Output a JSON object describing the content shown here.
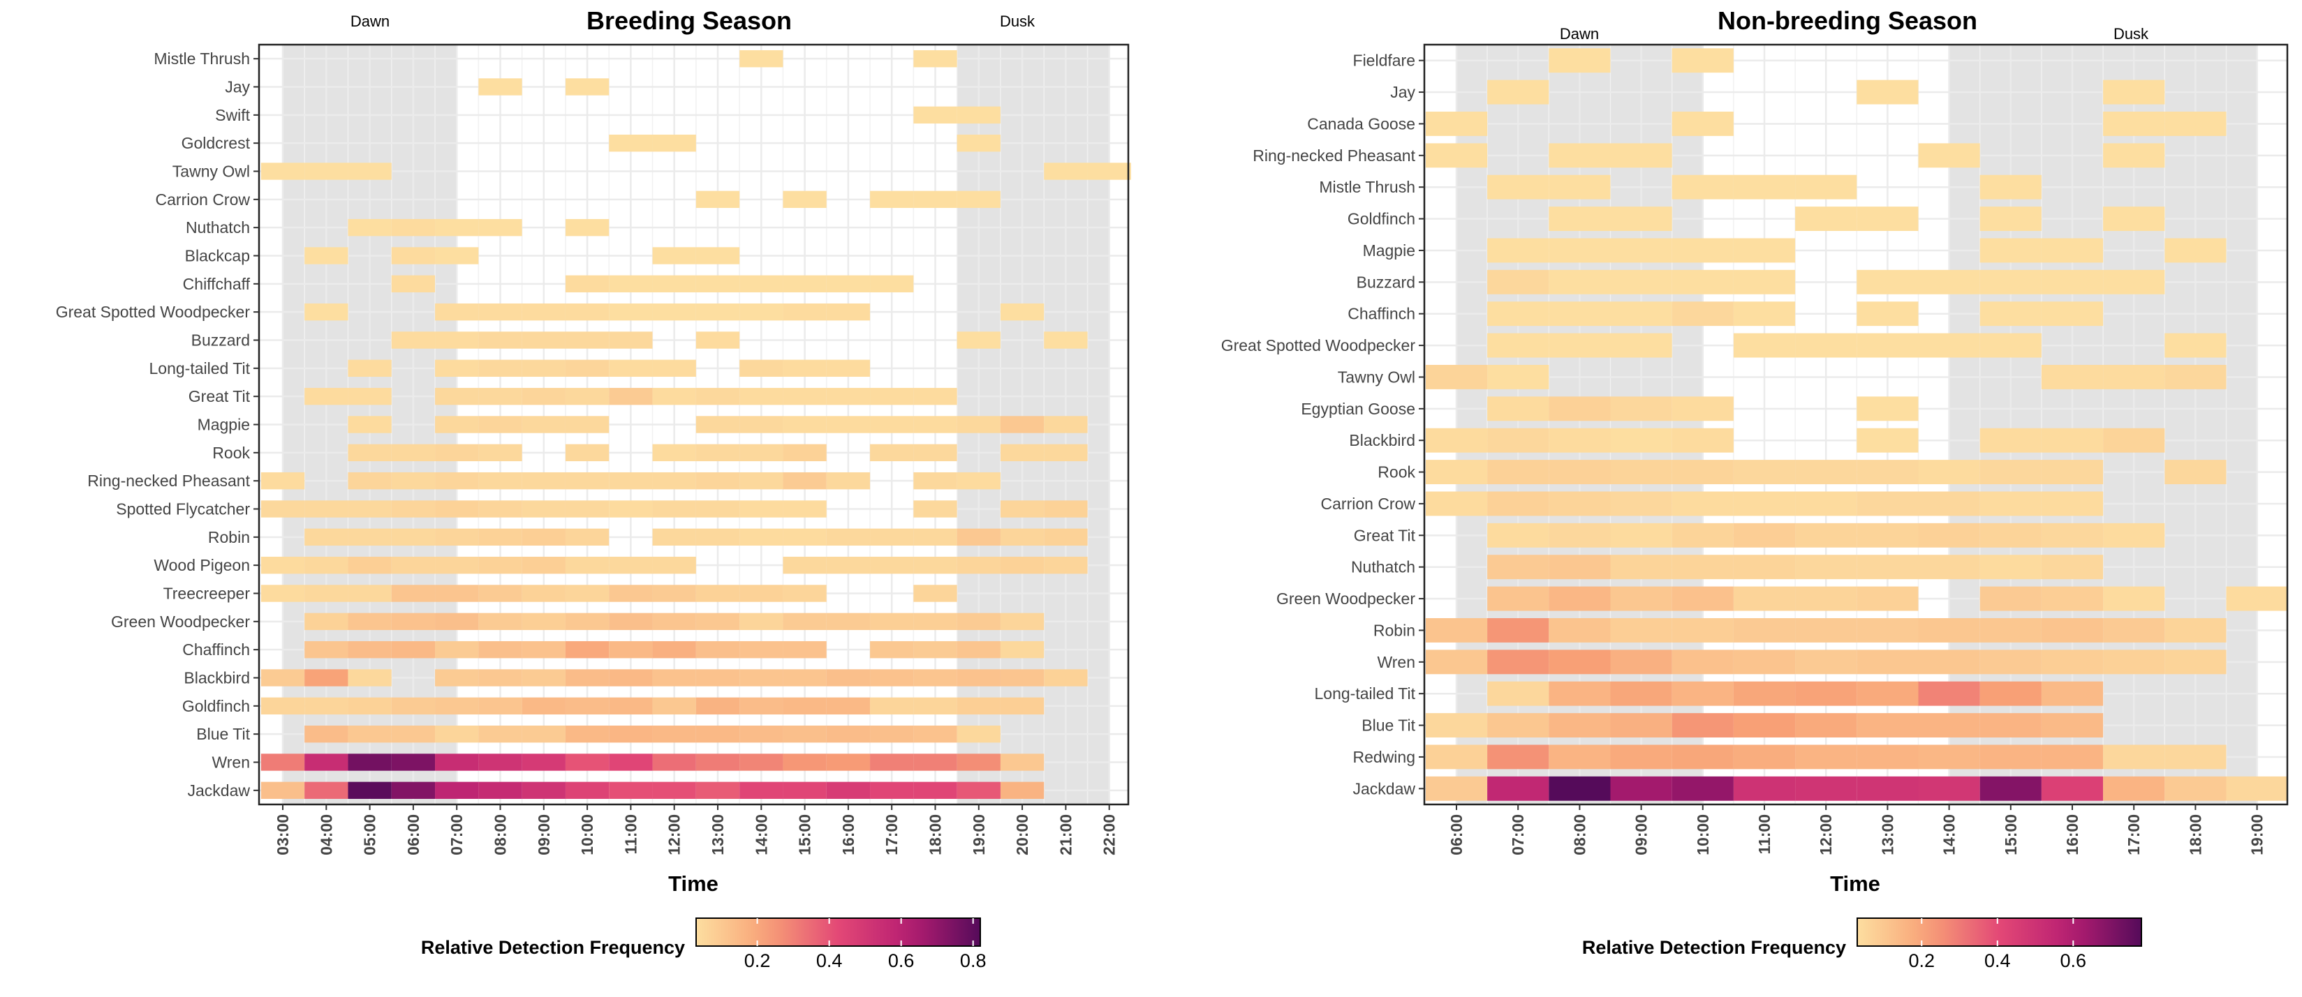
{
  "chart_data": [
    {
      "type": "heatmap",
      "title": "Breeding Season",
      "xlabel": "Time",
      "ylabel": "",
      "dawn_label": "Dawn",
      "dusk_label": "Dusk",
      "shaded_dawn": [
        "03:00",
        "07:00"
      ],
      "shaded_dusk": [
        "18:30",
        "22:00"
      ],
      "x": [
        "03:00",
        "04:00",
        "05:00",
        "06:00",
        "07:00",
        "08:00",
        "09:00",
        "10:00",
        "11:00",
        "12:00",
        "13:00",
        "14:00",
        "15:00",
        "16:00",
        "17:00",
        "18:00",
        "19:00",
        "20:00",
        "21:00",
        "22:00"
      ],
      "y": [
        "Mistle Thrush",
        "Jay",
        "Swift",
        "Goldcrest",
        "Tawny Owl",
        "Carrion Crow",
        "Nuthatch",
        "Blackcap",
        "Chiffchaff",
        "Great Spotted Woodpecker",
        "Buzzard",
        "Long-tailed Tit",
        "Great Tit",
        "Magpie",
        "Rook",
        "Ring-necked Pheasant",
        "Spotted Flycatcher",
        "Robin",
        "Wood Pigeon",
        "Treecreeper",
        "Green Woodpecker",
        "Chaffinch",
        "Blackbird",
        "Goldfinch",
        "Blue Tit",
        "Wren",
        "Jackdaw"
      ],
      "values": [
        [
          null,
          null,
          null,
          null,
          null,
          null,
          null,
          null,
          null,
          null,
          null,
          0.03,
          null,
          null,
          null,
          0.03,
          null,
          null,
          null,
          null
        ],
        [
          null,
          null,
          null,
          null,
          null,
          0.03,
          null,
          0.03,
          null,
          null,
          null,
          null,
          null,
          null,
          null,
          null,
          null,
          null,
          null,
          null
        ],
        [
          null,
          null,
          null,
          null,
          null,
          null,
          null,
          null,
          null,
          null,
          null,
          null,
          null,
          null,
          null,
          0.03,
          0.03,
          null,
          null,
          null
        ],
        [
          null,
          null,
          null,
          null,
          null,
          null,
          null,
          null,
          0.03,
          0.03,
          null,
          null,
          null,
          null,
          null,
          null,
          0.03,
          null,
          null,
          null
        ],
        [
          0.03,
          0.03,
          0.03,
          null,
          null,
          null,
          null,
          null,
          null,
          null,
          null,
          null,
          null,
          null,
          null,
          null,
          null,
          null,
          0.03,
          0.03
        ],
        [
          null,
          null,
          null,
          null,
          null,
          null,
          null,
          null,
          null,
          null,
          0.03,
          null,
          0.03,
          null,
          0.03,
          0.03,
          0.03,
          null,
          null,
          null
        ],
        [
          null,
          null,
          0.03,
          0.04,
          0.03,
          0.03,
          null,
          0.03,
          null,
          null,
          null,
          null,
          null,
          null,
          null,
          null,
          null,
          null,
          null,
          null
        ],
        [
          null,
          0.03,
          null,
          0.04,
          0.03,
          null,
          null,
          null,
          null,
          0.03,
          0.03,
          null,
          null,
          null,
          null,
          null,
          null,
          null,
          null,
          null
        ],
        [
          null,
          null,
          null,
          0.04,
          null,
          null,
          null,
          0.04,
          0.03,
          0.03,
          0.03,
          0.03,
          0.03,
          0.03,
          0.03,
          null,
          null,
          null,
          null,
          null
        ],
        [
          null,
          0.03,
          null,
          null,
          0.04,
          0.04,
          0.04,
          0.04,
          0.03,
          0.03,
          0.03,
          0.03,
          0.04,
          0.04,
          null,
          null,
          null,
          0.03,
          null,
          null
        ],
        [
          null,
          null,
          null,
          0.04,
          0.04,
          0.05,
          0.05,
          0.05,
          0.05,
          null,
          0.04,
          null,
          null,
          null,
          null,
          null,
          0.03,
          null,
          0.03,
          null
        ],
        [
          null,
          null,
          0.04,
          null,
          0.04,
          0.05,
          0.05,
          0.06,
          0.04,
          0.04,
          null,
          0.05,
          0.04,
          0.04,
          null,
          null,
          null,
          null,
          null,
          null
        ],
        [
          null,
          0.04,
          0.04,
          null,
          0.05,
          0.05,
          0.06,
          0.05,
          0.09,
          0.04,
          0.05,
          0.04,
          0.04,
          0.04,
          0.04,
          0.04,
          null,
          null,
          null,
          null
        ],
        [
          null,
          null,
          0.04,
          null,
          0.05,
          0.06,
          0.05,
          0.05,
          null,
          null,
          0.05,
          0.05,
          0.04,
          0.04,
          0.04,
          0.04,
          0.05,
          0.1,
          0.05,
          null
        ],
        [
          null,
          null,
          0.05,
          0.05,
          0.06,
          0.05,
          null,
          0.05,
          null,
          0.04,
          0.05,
          0.05,
          0.07,
          null,
          0.05,
          0.05,
          null,
          0.05,
          0.05,
          null
        ],
        [
          0.04,
          null,
          0.06,
          0.05,
          0.06,
          0.05,
          0.05,
          0.05,
          0.05,
          0.05,
          0.06,
          0.05,
          0.09,
          0.05,
          null,
          0.05,
          0.04,
          null,
          null,
          null
        ],
        [
          0.05,
          0.05,
          0.05,
          0.06,
          0.07,
          0.06,
          0.05,
          0.05,
          0.04,
          0.05,
          0.05,
          0.04,
          0.04,
          null,
          null,
          0.05,
          null,
          0.06,
          0.07,
          null
        ],
        [
          null,
          0.05,
          0.05,
          0.05,
          0.06,
          0.07,
          0.08,
          0.06,
          null,
          0.05,
          0.05,
          0.04,
          0.04,
          0.05,
          0.05,
          0.05,
          0.1,
          0.06,
          0.07,
          null
        ],
        [
          0.04,
          0.05,
          0.08,
          0.06,
          0.06,
          0.07,
          0.08,
          0.05,
          0.05,
          0.05,
          null,
          null,
          0.05,
          0.05,
          0.05,
          0.05,
          0.06,
          0.07,
          0.06,
          null
        ],
        [
          0.04,
          0.05,
          0.05,
          0.11,
          0.11,
          0.09,
          0.07,
          0.06,
          0.1,
          0.09,
          0.07,
          0.07,
          0.06,
          null,
          null,
          0.06,
          null,
          null,
          null,
          null
        ],
        [
          null,
          0.07,
          0.11,
          0.12,
          0.13,
          0.09,
          0.08,
          0.1,
          0.13,
          0.11,
          0.1,
          0.06,
          0.09,
          0.09,
          0.08,
          0.08,
          0.09,
          0.06,
          null,
          null
        ],
        [
          null,
          0.11,
          0.14,
          0.15,
          0.09,
          0.13,
          0.12,
          0.2,
          0.15,
          0.18,
          0.13,
          0.12,
          0.12,
          null,
          0.1,
          0.09,
          0.11,
          0.05,
          null,
          null
        ],
        [
          0.09,
          0.22,
          0.05,
          null,
          0.09,
          0.1,
          0.09,
          0.14,
          0.15,
          0.12,
          0.12,
          0.11,
          0.11,
          0.13,
          0.12,
          0.11,
          0.12,
          0.11,
          0.07,
          null
        ],
        [
          0.06,
          0.06,
          0.07,
          0.09,
          0.1,
          0.11,
          0.15,
          0.14,
          0.15,
          0.1,
          0.17,
          0.14,
          0.15,
          0.15,
          0.06,
          0.06,
          0.08,
          0.08,
          null,
          null
        ],
        [
          null,
          0.14,
          0.1,
          0.1,
          0.06,
          0.09,
          0.09,
          0.15,
          0.16,
          0.15,
          0.15,
          0.14,
          0.13,
          0.14,
          0.13,
          0.12,
          0.05,
          null,
          null,
          null
        ],
        [
          0.31,
          0.55,
          0.76,
          0.74,
          0.55,
          0.52,
          0.49,
          0.4,
          0.44,
          0.34,
          0.31,
          0.29,
          0.25,
          0.24,
          0.3,
          0.3,
          0.27,
          0.1,
          null,
          null
        ],
        [
          0.13,
          0.35,
          0.81,
          0.73,
          0.59,
          0.56,
          0.52,
          0.45,
          0.41,
          0.41,
          0.38,
          0.44,
          0.44,
          0.48,
          0.44,
          0.44,
          0.39,
          0.17,
          null,
          null
        ]
      ],
      "colorbar": {
        "label": "Relative Detection Frequency",
        "ticks": [
          0.2,
          0.4,
          0.6,
          0.8
        ],
        "min": 0.03,
        "max": 0.82
      }
    },
    {
      "type": "heatmap",
      "title": "Non-breeding Season",
      "xlabel": "Time",
      "ylabel": "",
      "dawn_label": "Dawn",
      "dusk_label": "Dusk",
      "shaded_dawn": [
        "06:00",
        "10:00"
      ],
      "shaded_dusk": [
        "14:00",
        "19:00"
      ],
      "x": [
        "06:00",
        "07:00",
        "08:00",
        "09:00",
        "10:00",
        "11:00",
        "12:00",
        "13:00",
        "14:00",
        "15:00",
        "16:00",
        "17:00",
        "18:00",
        "19:00"
      ],
      "y": [
        "Fieldfare",
        "Jay",
        "Canada Goose",
        "Ring-necked Pheasant",
        "Mistle Thrush",
        "Goldfinch",
        "Magpie",
        "Buzzard",
        "Chaffinch",
        "Great Spotted Woodpecker",
        "Tawny Owl",
        "Egyptian Goose",
        "Blackbird",
        "Rook",
        "Carrion Crow",
        "Great Tit",
        "Nuthatch",
        "Green Woodpecker",
        "Robin",
        "Wren",
        "Long-tailed Tit",
        "Blue Tit",
        "Redwing",
        "Jackdaw"
      ],
      "values": [
        [
          null,
          null,
          0.03,
          null,
          0.03,
          null,
          null,
          null,
          null,
          null,
          null,
          null,
          null,
          null
        ],
        [
          null,
          0.03,
          null,
          null,
          null,
          null,
          null,
          0.03,
          null,
          null,
          null,
          0.03,
          null,
          null
        ],
        [
          0.03,
          null,
          null,
          null,
          0.03,
          null,
          null,
          null,
          null,
          null,
          null,
          0.03,
          0.03,
          null
        ],
        [
          0.03,
          null,
          0.03,
          0.03,
          null,
          null,
          null,
          null,
          0.03,
          null,
          null,
          0.03,
          null,
          null
        ],
        [
          null,
          0.03,
          0.03,
          null,
          0.03,
          0.03,
          0.03,
          null,
          null,
          0.03,
          null,
          null,
          null,
          null
        ],
        [
          null,
          null,
          0.03,
          0.03,
          null,
          null,
          0.03,
          0.03,
          null,
          0.03,
          null,
          0.03,
          null,
          null
        ],
        [
          null,
          0.03,
          0.03,
          0.03,
          0.03,
          0.03,
          null,
          null,
          null,
          0.03,
          0.03,
          null,
          0.03,
          null
        ],
        [
          null,
          0.05,
          0.03,
          0.03,
          0.03,
          0.03,
          null,
          0.03,
          0.03,
          0.03,
          0.03,
          0.03,
          null,
          null
        ],
        [
          null,
          0.03,
          0.03,
          0.03,
          0.05,
          0.03,
          null,
          0.03,
          null,
          0.03,
          0.03,
          null,
          null,
          null
        ],
        [
          null,
          0.03,
          0.03,
          0.03,
          null,
          0.03,
          0.03,
          0.03,
          0.03,
          0.03,
          null,
          null,
          0.03,
          null
        ],
        [
          0.06,
          0.03,
          null,
          null,
          null,
          null,
          null,
          null,
          null,
          null,
          0.04,
          0.04,
          0.05,
          null
        ],
        [
          null,
          0.04,
          0.07,
          0.05,
          0.04,
          null,
          null,
          0.03,
          null,
          null,
          null,
          null,
          null,
          null
        ],
        [
          0.04,
          0.05,
          0.04,
          0.03,
          0.04,
          null,
          null,
          0.03,
          null,
          0.04,
          0.04,
          0.06,
          null,
          null
        ],
        [
          0.04,
          0.07,
          0.07,
          0.06,
          0.06,
          0.05,
          0.05,
          0.05,
          0.04,
          0.05,
          0.05,
          null,
          0.05,
          null
        ],
        [
          0.04,
          0.07,
          0.06,
          0.05,
          0.04,
          0.04,
          0.04,
          0.05,
          0.05,
          0.04,
          0.04,
          null,
          null,
          null
        ],
        [
          null,
          0.04,
          0.05,
          0.04,
          0.06,
          0.08,
          0.06,
          0.06,
          0.07,
          0.06,
          0.05,
          0.04,
          null,
          null
        ],
        [
          null,
          0.09,
          0.1,
          0.06,
          0.06,
          0.06,
          0.05,
          0.05,
          0.05,
          0.04,
          0.05,
          null,
          null,
          null
        ],
        [
          null,
          0.11,
          0.15,
          0.1,
          0.12,
          0.06,
          0.06,
          0.07,
          null,
          0.09,
          0.08,
          0.04,
          null,
          0.04
        ],
        [
          0.11,
          0.24,
          0.11,
          0.08,
          0.08,
          0.09,
          0.09,
          0.09,
          0.1,
          0.1,
          0.11,
          0.09,
          0.06,
          null
        ],
        [
          0.1,
          0.24,
          0.22,
          0.17,
          0.12,
          0.11,
          0.09,
          0.1,
          0.1,
          0.09,
          0.08,
          0.07,
          0.06,
          null
        ],
        [
          null,
          0.05,
          0.16,
          0.2,
          0.16,
          0.2,
          0.21,
          0.19,
          0.28,
          0.22,
          0.14,
          null,
          null,
          null
        ],
        [
          0.05,
          0.1,
          0.15,
          0.17,
          0.24,
          0.22,
          0.19,
          0.16,
          0.16,
          0.16,
          0.14,
          null,
          null,
          null
        ],
        [
          0.07,
          0.25,
          0.16,
          0.19,
          0.2,
          0.18,
          0.16,
          0.16,
          0.15,
          0.16,
          0.16,
          0.05,
          0.05,
          null
        ],
        [
          0.09,
          0.55,
          0.78,
          0.63,
          0.66,
          0.5,
          0.49,
          0.49,
          0.48,
          0.69,
          0.44,
          0.16,
          0.09,
          0.05
        ]
      ],
      "colorbar": {
        "label": "Relative Detection Frequency",
        "ticks": [
          0.2,
          0.4,
          0.6
        ],
        "min": 0.03,
        "max": 0.78
      }
    }
  ]
}
